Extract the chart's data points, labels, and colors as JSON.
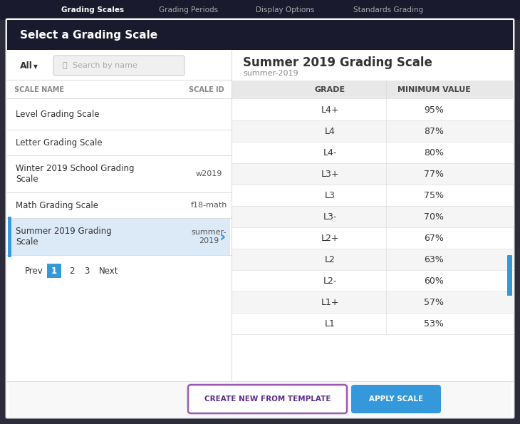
{
  "bg_color": "#2c2c3a",
  "modal_bg": "#ffffff",
  "header_bg": "#1a1a2e",
  "header_text": "Select a Grading Scale",
  "header_text_color": "#ffffff",
  "nav_items": [
    "Grading Scales",
    "Grading Periods",
    "Display Options",
    "Standards Grading"
  ],
  "nav_color": "#aaaaaa",
  "nav_active_color": "#ffffff",
  "filter_label": "All",
  "search_placeholder": "Search by name",
  "col_headers": [
    "SCALE NAME",
    "SCALE ID"
  ],
  "scale_list": [
    {
      "name": "Level Grading Scale",
      "id": "",
      "active": false
    },
    {
      "name": "Letter Grading Scale",
      "id": "",
      "active": false
    },
    {
      "name": "Winter 2019 School Grading\nScale",
      "id": "w2019",
      "active": false
    },
    {
      "name": "Math Grading Scale",
      "id": "f18-math",
      "active": false
    },
    {
      "name": "Summer 2019 Grading\nScale",
      "id": "summer-\n2019",
      "active": true
    }
  ],
  "pagination_prev": "Prev",
  "pagination_pages": [
    "1",
    "2",
    "3"
  ],
  "pagination_next": "Next",
  "pagination_active": "1",
  "right_title": "Summer 2019 Grading Scale",
  "right_subtitle": "summer-2019",
  "table_headers": [
    "GRADE",
    "MINIMUM VALUE"
  ],
  "table_rows": [
    {
      "grade": "L4+",
      "value": "95%",
      "shaded": false
    },
    {
      "grade": "L4",
      "value": "87%",
      "shaded": true
    },
    {
      "grade": "L4-",
      "value": "80%",
      "shaded": false
    },
    {
      "grade": "L3+",
      "value": "77%",
      "shaded": true
    },
    {
      "grade": "L3",
      "value": "75%",
      "shaded": false
    },
    {
      "grade": "L3-",
      "value": "70%",
      "shaded": true
    },
    {
      "grade": "L2+",
      "value": "67%",
      "shaded": false
    },
    {
      "grade": "L2",
      "value": "63%",
      "shaded": true
    },
    {
      "grade": "L2-",
      "value": "60%",
      "shaded": false
    },
    {
      "grade": "L1+",
      "value": "57%",
      "shaded": true
    },
    {
      "grade": "L1",
      "value": "53%",
      "shaded": false
    }
  ],
  "btn1_text": "CREATE NEW FROM TEMPLATE",
  "btn1_border": "#9b59b6",
  "btn1_text_color": "#5b2d8e",
  "btn2_text": "APPLY SCALE",
  "btn2_bg": "#3498db",
  "btn2_text_color": "#ffffff",
  "active_row_bg": "#dce9f7",
  "active_row_border": "#3498db",
  "shaded_row_bg": "#f5f5f5",
  "white_row_bg": "#ffffff",
  "table_header_bg": "#e8e8e8",
  "divider_color": "#dddddd",
  "text_dark": "#333333",
  "text_medium": "#555555",
  "text_light": "#999999",
  "arrow_color": "#3498db"
}
